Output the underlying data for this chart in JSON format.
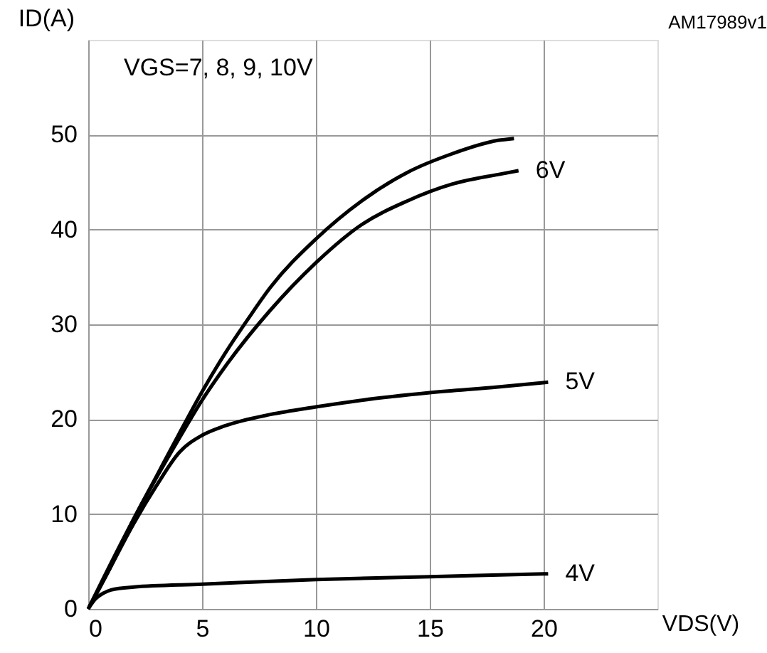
{
  "chart_data": {
    "type": "line",
    "xlabel": "VDS(V)",
    "ylabel": "ID(A)",
    "annotations": [
      "VGS=7, 8, 9, 10V",
      "AM17989v1"
    ],
    "xlim": [
      0,
      25
    ],
    "ylim": [
      0,
      60
    ],
    "xticks": [
      0,
      5,
      10,
      15,
      20
    ],
    "yticks": [
      0,
      10,
      20,
      30,
      40,
      50
    ],
    "grid": true,
    "legend": false,
    "marker": "none",
    "line_style": "solid",
    "series": [
      {
        "color": "#000000",
        "x": [
          0,
          1,
          2,
          3,
          4,
          5,
          6,
          7,
          8,
          10,
          12,
          14,
          16,
          18,
          18.7
        ],
        "values": [
          0,
          4.5,
          9.5,
          14,
          18.5,
          22.9,
          26.9,
          30.5,
          33.9,
          39,
          43,
          46,
          48,
          49.4,
          49.6
        ]
      },
      {
        "name": "6V",
        "color": "#000000",
        "x": [
          0,
          2,
          4,
          5,
          6,
          8,
          10,
          12,
          14,
          16,
          18,
          18.9
        ],
        "values": [
          0,
          9.5,
          18,
          22,
          25.5,
          31.5,
          36.5,
          40.5,
          43,
          44.8,
          45.8,
          46.2
        ]
      },
      {
        "name": "5V",
        "color": "#000000",
        "x": [
          0,
          1,
          2,
          3,
          4,
          5,
          6,
          8,
          10,
          12,
          15,
          18,
          20.2
        ],
        "values": [
          0,
          4.5,
          9,
          13,
          16.5,
          18.3,
          19.3,
          20.5,
          21.3,
          22,
          22.8,
          23.4,
          23.9
        ]
      },
      {
        "name": "4V",
        "color": "#000000",
        "x": [
          0,
          0.3,
          0.7,
          1,
          2,
          5,
          10,
          15,
          20.2
        ],
        "values": [
          0,
          1,
          1.7,
          2,
          2.3,
          2.6,
          3.1,
          3.4,
          3.7
        ]
      }
    ]
  }
}
